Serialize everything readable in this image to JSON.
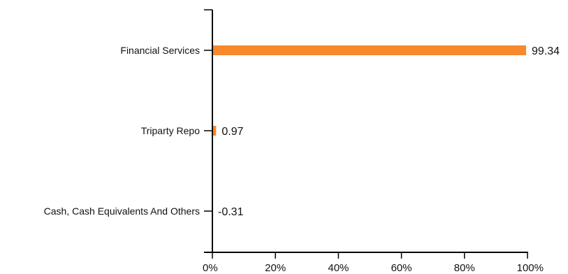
{
  "chart_data": {
    "type": "bar",
    "orientation": "horizontal",
    "categories": [
      "Financial Services",
      "Triparty Repo",
      "Cash, Cash Equivalents And Others"
    ],
    "values": [
      99.34,
      0.97,
      -0.31
    ],
    "value_labels": [
      "99.34",
      "0.97",
      "-0.31"
    ],
    "x_ticks": [
      "0%",
      "20%",
      "40%",
      "60%",
      "80%",
      "100%"
    ],
    "x_tick_values": [
      0,
      20,
      40,
      60,
      80,
      100
    ],
    "xlim": [
      0,
      100
    ],
    "title": "",
    "xlabel": "",
    "ylabel": "",
    "grid": false,
    "bar_color": "#f7892b"
  }
}
